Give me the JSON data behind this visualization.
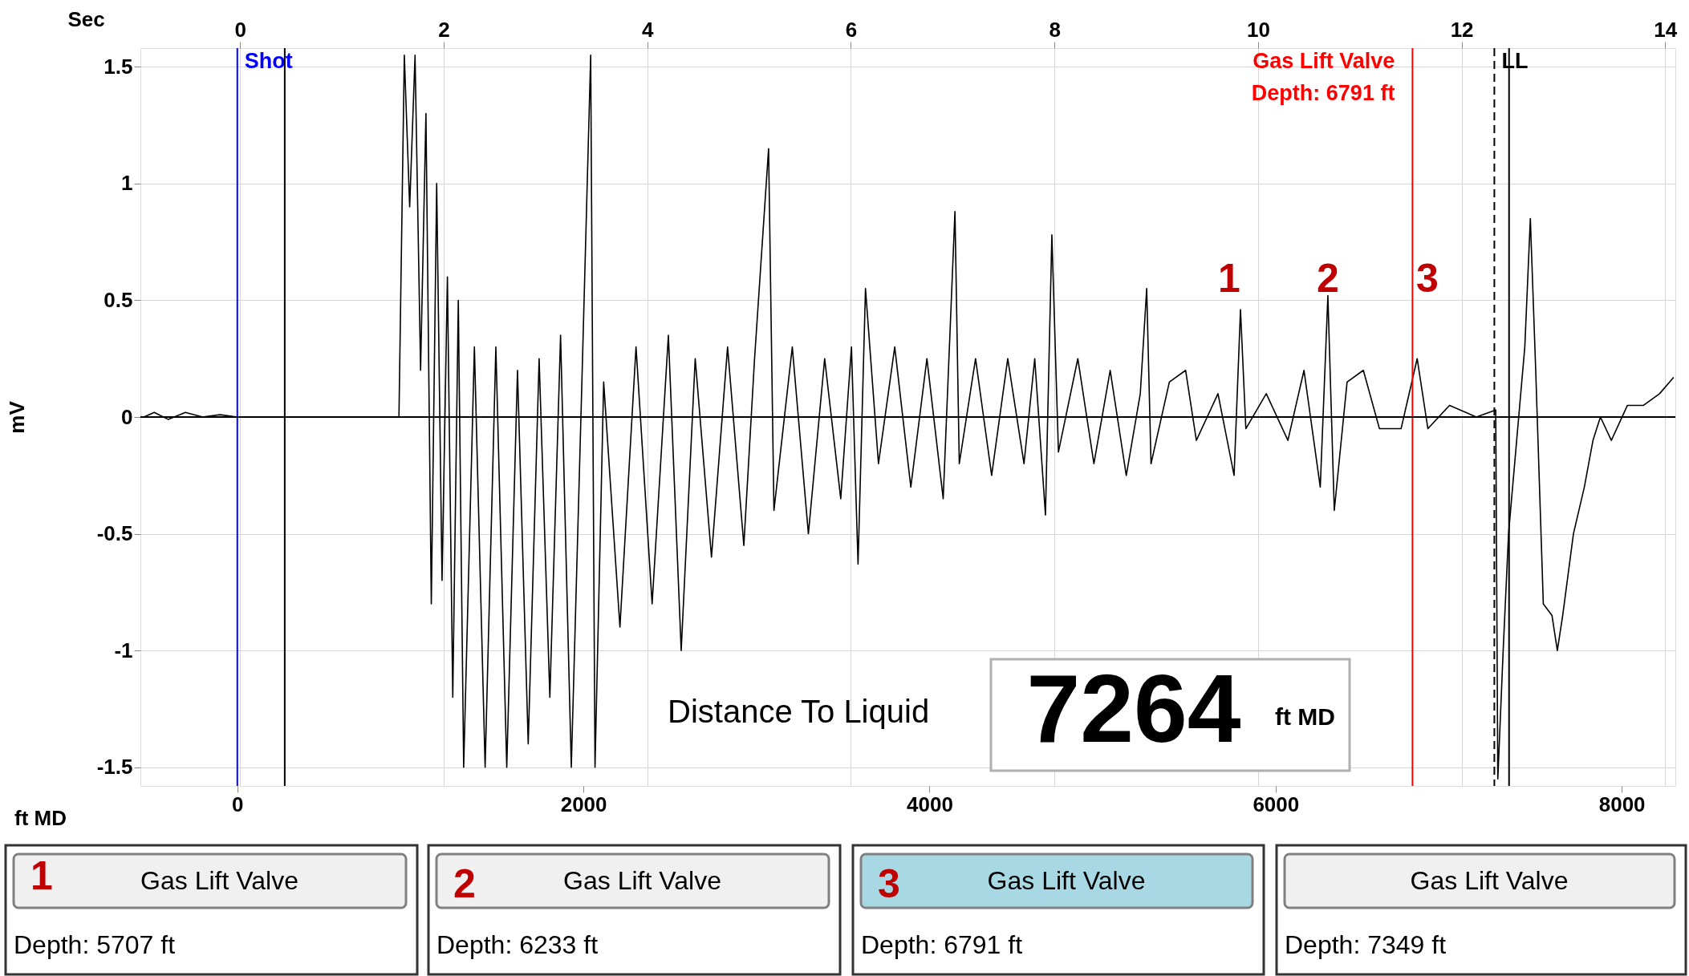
{
  "chart_data": {
    "type": "line",
    "xlabel": "ft MD",
    "x2label": "Sec",
    "ylabel": "mV",
    "xlim": [
      -560,
      8310
    ],
    "xticks": [
      0,
      2000,
      4000,
      6000,
      8000
    ],
    "x2lim": [
      -0.98,
      14.1
    ],
    "x2ticks": [
      0,
      2,
      4,
      6,
      8,
      10,
      12,
      14
    ],
    "ylim": [
      -1.58,
      1.58
    ],
    "yticks": [
      -1.5,
      -1,
      -0.5,
      0,
      0.5,
      1,
      1.5
    ],
    "grid": true,
    "marker": "none",
    "line_style": "solid",
    "series": [
      {
        "color": "#000000",
        "x": [
          -540,
          -480,
          -400,
          -300,
          -200,
          -100,
          0,
          62,
          934,
          965,
          996,
          1027,
          1059,
          1090,
          1121,
          1152,
          1183,
          1214,
          1245,
          1277,
          1308,
          1370,
          1432,
          1494,
          1557,
          1619,
          1681,
          1744,
          1806,
          1868,
          1930,
          1993,
          2042,
          2067,
          2117,
          2211,
          2304,
          2397,
          2491,
          2565,
          2646,
          2740,
          2833,
          2927,
          2989,
          3070,
          3101,
          3207,
          3300,
          3394,
          3487,
          3549,
          3587,
          3630,
          3705,
          3799,
          3892,
          3985,
          4079,
          4147,
          4172,
          4266,
          4359,
          4452,
          4546,
          4608,
          4670,
          4707,
          4745,
          4857,
          4950,
          5044,
          5137,
          5218,
          5255,
          5280,
          5386,
          5480,
          5542,
          5667,
          5760,
          5797,
          5828,
          5946,
          6071,
          6164,
          6258,
          6302,
          6339,
          6413,
          6507,
          6600,
          6725,
          6818,
          6880,
          7005,
          7160,
          7272,
          7284,
          7315,
          7346,
          7440,
          7472,
          7503,
          7547,
          7597,
          7628,
          7659,
          7721,
          7784,
          7834,
          7877,
          7940,
          8033,
          8126,
          8219,
          8300
        ],
        "values": [
          0.0,
          0.02,
          -0.01,
          0.02,
          0.0,
          0.01,
          0.0,
          0.0,
          0.0,
          1.55,
          0.9,
          1.55,
          0.2,
          1.3,
          -0.8,
          1.0,
          -0.7,
          0.6,
          -1.2,
          0.5,
          -1.5,
          0.3,
          -1.5,
          0.3,
          -1.5,
          0.2,
          -1.4,
          0.25,
          -1.2,
          0.35,
          -1.5,
          0.2,
          1.55,
          -1.5,
          0.15,
          -0.9,
          0.3,
          -0.8,
          0.35,
          -1.0,
          0.25,
          -0.6,
          0.3,
          -0.55,
          0.25,
          1.15,
          -0.4,
          0.3,
          -0.5,
          0.25,
          -0.35,
          0.3,
          -0.63,
          0.55,
          -0.2,
          0.3,
          -0.3,
          0.25,
          -0.35,
          0.88,
          -0.2,
          0.25,
          -0.25,
          0.25,
          -0.2,
          0.25,
          -0.42,
          0.78,
          -0.15,
          0.25,
          -0.2,
          0.2,
          -0.25,
          0.1,
          0.55,
          -0.2,
          0.15,
          0.2,
          -0.1,
          0.1,
          -0.25,
          0.46,
          -0.05,
          0.1,
          -0.1,
          0.2,
          -0.3,
          0.52,
          -0.4,
          0.15,
          0.2,
          -0.05,
          -0.05,
          0.25,
          -0.05,
          0.05,
          0.0,
          0.03,
          -1.55,
          -1.0,
          -0.5,
          0.3,
          0.85,
          0.2,
          -0.8,
          -0.85,
          -1.0,
          -0.85,
          -0.5,
          -0.3,
          -0.1,
          0.0,
          -0.1,
          0.05,
          0.05,
          0.1,
          0.17
        ]
      }
    ],
    "ref_lines": [
      {
        "axis": "x",
        "value": 0,
        "label": "Shot",
        "color": "#0000ff"
      },
      {
        "axis": "x",
        "value": 274,
        "color": "#000000"
      },
      {
        "axis": "x",
        "value": 6791,
        "label": "Gas Lift Valve\nDepth: 6791 ft",
        "color": "#ff0000"
      },
      {
        "axis": "x",
        "value": 7264,
        "label": "LL",
        "color": "#000000",
        "line_style": "dashed"
      },
      {
        "axis": "x",
        "value": 7349,
        "color": "#000000"
      },
      {
        "axis": "y",
        "value": 0,
        "color": "#000000"
      }
    ],
    "annotations": [
      "1",
      "2",
      "3",
      "Distance To Liquid",
      "7264",
      "ft MD",
      "Gas Lift Valve",
      "Depth: 5707 ft",
      "Gas Lift Valve",
      "Depth: 6233 ft",
      "Gas Lift Valve",
      "Depth: 6791 ft",
      "Gas Lift Valve",
      "Depth: 7349 ft",
      "1",
      "2",
      "3"
    ]
  }
}
